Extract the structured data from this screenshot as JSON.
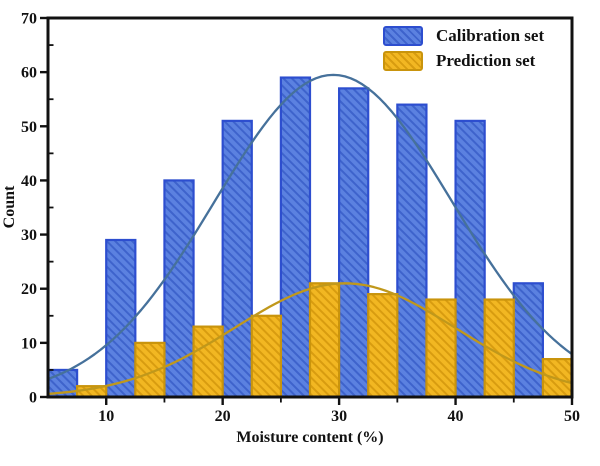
{
  "figure": {
    "background": "#ffffff",
    "text_color": "#111111",
    "axis_color": "#111111"
  },
  "chart_data": {
    "type": "bar",
    "title": "",
    "xlabel": "Moisture content (%)",
    "ylabel": "Count",
    "xlim": [
      5,
      50
    ],
    "ylim": [
      0,
      70
    ],
    "grid": false,
    "bin_width": 5,
    "bin_edges": [
      5,
      10,
      15,
      20,
      25,
      30,
      35,
      40,
      45,
      50
    ],
    "x_major_ticks": [
      10,
      20,
      30,
      40,
      50
    ],
    "x_minor_ticks": [
      15,
      25,
      35,
      45
    ],
    "y_major_ticks": [
      0,
      10,
      20,
      30,
      40,
      50,
      60,
      70
    ],
    "y_minor_ticks": [
      5,
      15,
      25,
      35,
      45,
      55,
      65
    ],
    "series": [
      {
        "name": "Calibration set",
        "values": [
          5,
          29,
          40,
          51,
          59,
          57,
          54,
          51,
          21
        ],
        "fill": "#5b81e0",
        "hatch": "#3e63cc",
        "edge": "#2d4ecf",
        "hatch_style": "backslash"
      },
      {
        "name": "Prediction set",
        "values": [
          2,
          10,
          13,
          15,
          21,
          19,
          18,
          18,
          7
        ],
        "fill": "#f2b722",
        "hatch": "#d89c10",
        "edge": "#c9940c",
        "hatch_style": "backslash"
      }
    ],
    "curves": [
      {
        "name": "Calibration fit curve",
        "color": "#46719b",
        "amplitude": 59.5,
        "mean": 29.5,
        "sigma": 10.2
      },
      {
        "name": "Prediction fit curve",
        "color": "#c0981b",
        "amplitude": 21,
        "mean": 30.5,
        "sigma": 9.5
      }
    ],
    "legend": {
      "position": "upper right",
      "entries": [
        "Calibration set",
        "Prediction set"
      ]
    }
  }
}
